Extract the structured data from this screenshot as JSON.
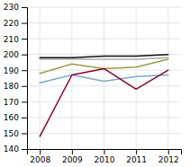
{
  "chart_data": {
    "type": "line",
    "x": [
      2008,
      2009,
      2010,
      2011,
      2012
    ],
    "series": [
      {
        "color": "#111111",
        "values": [
          198,
          198,
          199,
          199,
          200
        ]
      },
      {
        "color": "#aaaaaa",
        "values": [
          197,
          197,
          197,
          197,
          198
        ]
      },
      {
        "color": "#9a9a4a",
        "values": [
          188,
          194,
          191,
          192,
          197
        ]
      },
      {
        "color": "#7aaac8",
        "values": [
          182,
          187,
          183,
          186,
          187
        ]
      },
      {
        "color": "#8b0030",
        "values": [
          148,
          187,
          191,
          178,
          190
        ]
      }
    ],
    "xlim": [
      2007.6,
      2012.4
    ],
    "ylim": [
      140,
      230
    ],
    "xticks": [
      2008,
      2009,
      2010,
      2011,
      2012
    ],
    "yticks": [
      140,
      150,
      160,
      170,
      180,
      190,
      200,
      210,
      220,
      230
    ],
    "grid": true
  }
}
